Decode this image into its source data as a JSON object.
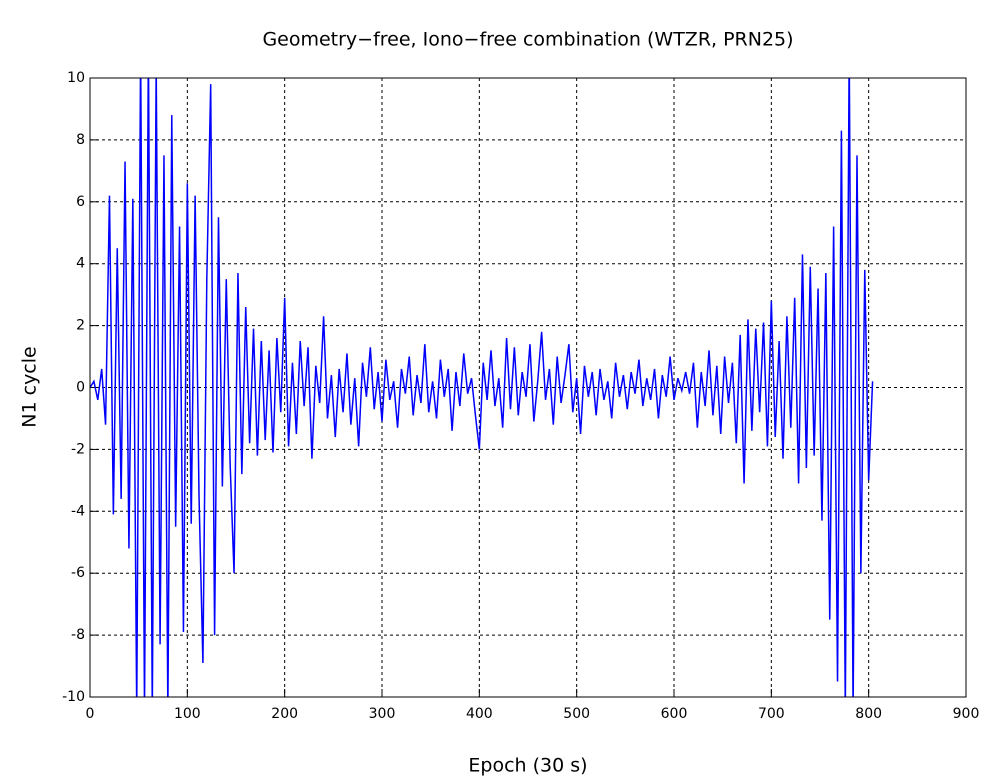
{
  "chart_data": {
    "type": "line",
    "title": "Geometry−free, Iono−free combination (WTZR, PRN25)",
    "xlabel": "Epoch (30 s)",
    "ylabel": "N1 cycle",
    "xlim": [
      0,
      900
    ],
    "ylim": [
      -10,
      10
    ],
    "xticks": [
      0,
      100,
      200,
      300,
      400,
      500,
      600,
      700,
      800,
      900
    ],
    "yticks": [
      -10,
      -8,
      -6,
      -4,
      -2,
      0,
      2,
      4,
      6,
      8,
      10
    ],
    "grid": true,
    "x": [
      0,
      4,
      8,
      12,
      16,
      20,
      24,
      28,
      32,
      36,
      40,
      44,
      48,
      52,
      56,
      60,
      64,
      68,
      72,
      76,
      80,
      84,
      88,
      92,
      96,
      100,
      104,
      108,
      112,
      116,
      120,
      124,
      128,
      132,
      136,
      140,
      144,
      148,
      152,
      156,
      160,
      164,
      168,
      172,
      176,
      180,
      184,
      188,
      192,
      196,
      200,
      204,
      208,
      212,
      216,
      220,
      224,
      228,
      232,
      236,
      240,
      244,
      248,
      252,
      256,
      260,
      264,
      268,
      272,
      276,
      280,
      284,
      288,
      292,
      296,
      300,
      304,
      308,
      312,
      316,
      320,
      324,
      328,
      332,
      336,
      340,
      344,
      348,
      352,
      356,
      360,
      364,
      368,
      372,
      376,
      380,
      384,
      388,
      392,
      396,
      400,
      404,
      408,
      412,
      416,
      420,
      424,
      428,
      432,
      436,
      440,
      444,
      448,
      452,
      456,
      460,
      464,
      468,
      472,
      476,
      480,
      484,
      488,
      492,
      496,
      500,
      504,
      508,
      512,
      516,
      520,
      524,
      528,
      532,
      536,
      540,
      544,
      548,
      552,
      556,
      560,
      564,
      568,
      572,
      576,
      580,
      584,
      588,
      592,
      596,
      600,
      604,
      608,
      612,
      616,
      620,
      624,
      628,
      632,
      636,
      640,
      644,
      648,
      652,
      656,
      660,
      664,
      668,
      672,
      676,
      680,
      684,
      688,
      692,
      696,
      700,
      704,
      708,
      712,
      716,
      720,
      724,
      728,
      732,
      736,
      740,
      744,
      748,
      752,
      756,
      760,
      764,
      768,
      772,
      776,
      780,
      784,
      788,
      792,
      796,
      800,
      804
    ],
    "series": [
      {
        "name": "N1",
        "color": "#0000ff",
        "values": [
          0,
          0.2,
          -0.4,
          0.6,
          -1.2,
          6.2,
          -4.1,
          4.5,
          -3.6,
          7.3,
          -5.2,
          6.1,
          -10.5,
          11,
          -10.5,
          11,
          -10.5,
          10.5,
          -8.3,
          7.5,
          -10.5,
          8.8,
          -4.5,
          5.2,
          -7.9,
          6.6,
          -4.4,
          6.2,
          -3.5,
          -8.9,
          3.5,
          9.8,
          -8,
          5.5,
          -3.2,
          3.5,
          -2.5,
          -6,
          3.7,
          -2.8,
          2.6,
          -1.8,
          1.9,
          -2.2,
          1.5,
          -1.7,
          1.2,
          -2.1,
          1.6,
          -0.8,
          2.9,
          -1.9,
          0.8,
          -1.5,
          1.5,
          -0.6,
          1.3,
          -2.3,
          0.7,
          -0.5,
          2.3,
          -1.0,
          0.4,
          -1.6,
          0.6,
          -0.8,
          1.1,
          -1.2,
          0.3,
          -1.9,
          0.8,
          -0.3,
          1.3,
          -0.7,
          0.5,
          -1.1,
          0.9,
          -0.4,
          0.2,
          -1.3,
          0.6,
          -0.2,
          1.0,
          -0.9,
          0.4,
          -0.5,
          1.4,
          -0.8,
          0.2,
          -1.0,
          0.9,
          -0.3,
          0.6,
          -1.4,
          0.5,
          -0.6,
          1.1,
          -0.2,
          0.3,
          -0.9,
          -2.0,
          0.8,
          -0.4,
          1.2,
          -0.6,
          0.3,
          -1.3,
          1.6,
          -0.7,
          1.3,
          -0.9,
          0.5,
          -0.3,
          1.4,
          -1.1,
          0.2,
          1.8,
          -0.4,
          0.6,
          -1.2,
          1.0,
          -0.5,
          0.4,
          1.4,
          -0.8,
          0.3,
          -1.5,
          0.7,
          -0.3,
          0.5,
          -0.9,
          0.6,
          -0.4,
          0.2,
          -1.0,
          0.8,
          -0.3,
          0.4,
          -0.7,
          0.5,
          -0.2,
          0.9,
          -0.6,
          0.3,
          -0.4,
          0.6,
          -1.0,
          0.4,
          -0.3,
          1.0,
          -0.4,
          0.3,
          -0.1,
          0.5,
          -0.2,
          0.8,
          -1.3,
          0.5,
          -0.6,
          1.2,
          -0.9,
          0.7,
          -1.5,
          1.0,
          -0.5,
          0.8,
          -1.8,
          1.7,
          -3.1,
          2.2,
          -1.4,
          1.9,
          -0.8,
          2.1,
          -1.9,
          2.8,
          -1.6,
          1.5,
          -2.3,
          2.3,
          -1.3,
          2.9,
          -3.1,
          4.3,
          -2.6,
          3.9,
          -2.2,
          3.2,
          -4.3,
          3.7,
          -7.5,
          5.2,
          -9.5,
          8.3,
          -10.5,
          11,
          -10.5,
          7.5,
          -6,
          3.8,
          -3,
          0.2
        ]
      }
    ]
  }
}
